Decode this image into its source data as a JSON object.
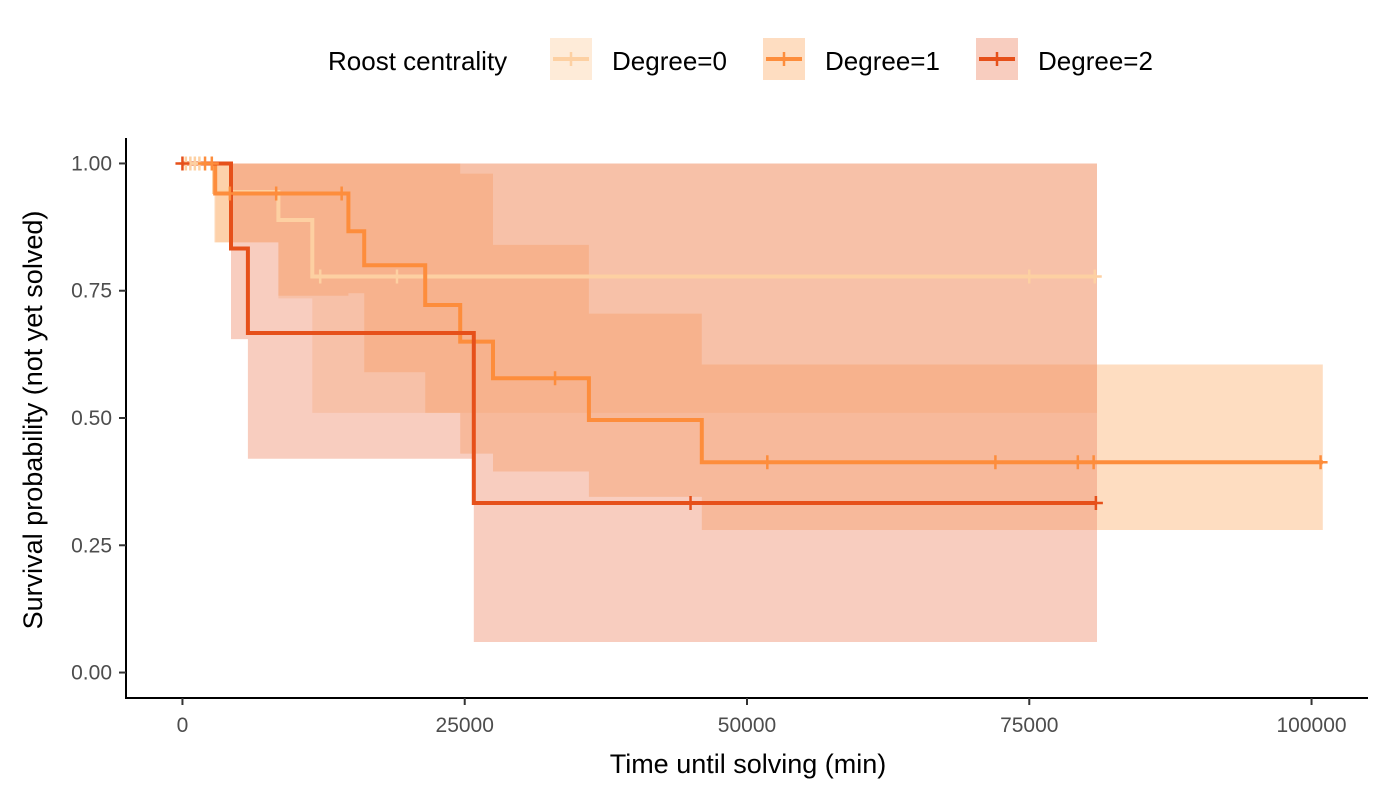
{
  "chart_data": {
    "type": "step",
    "title": "",
    "xlabel": "Time until solving (min)",
    "ylabel": "Survival probability (not yet solved)",
    "xlim": [
      -5000,
      105000
    ],
    "ylim": [
      -0.05,
      1.05
    ],
    "x_ticks": [
      0,
      25000,
      50000,
      75000,
      100000
    ],
    "x_tick_labels": [
      "0",
      "25000",
      "50000",
      "75000",
      "100000"
    ],
    "y_ticks": [
      0,
      0.25,
      0.5,
      0.75,
      1.0
    ],
    "y_tick_labels": [
      "0.00",
      "0.25",
      "0.50",
      "0.75",
      "1.00"
    ],
    "grid": false,
    "legend": {
      "title": "Roost centrality",
      "position": "top",
      "entries": [
        "Degree=0",
        "Degree=1",
        "Degree=2"
      ]
    },
    "series": [
      {
        "name": "Degree=0",
        "color": "#fdd0a2",
        "band_color": "#fdd0a2",
        "steps": [
          [
            0,
            1.0
          ],
          [
            2800,
            0.944
          ],
          [
            8500,
            0.889
          ],
          [
            11500,
            0.778
          ],
          [
            81000,
            0.778
          ]
        ],
        "lower": [
          [
            0,
            1.0
          ],
          [
            2800,
            0.845
          ],
          [
            8500,
            0.735
          ],
          [
            11500,
            0.51
          ],
          [
            81000,
            0.51
          ]
        ],
        "upper": [
          [
            0,
            1.0
          ],
          [
            81000,
            1.0
          ]
        ],
        "censored": [
          [
            300,
            1.0
          ],
          [
            700,
            1.0
          ],
          [
            1100,
            1.0
          ],
          [
            1500,
            1.0
          ],
          [
            12200,
            0.778
          ],
          [
            19000,
            0.778
          ],
          [
            75000,
            0.778
          ],
          [
            80800,
            0.778
          ]
        ]
      },
      {
        "name": "Degree=1",
        "color": "#fd8d3c",
        "band_color": "#fdae6b",
        "steps": [
          [
            0,
            1.0
          ],
          [
            2900,
            0.941
          ],
          [
            14700,
            0.867
          ],
          [
            16100,
            0.8
          ],
          [
            21500,
            0.722
          ],
          [
            24600,
            0.65
          ],
          [
            27500,
            0.578
          ],
          [
            36000,
            0.496
          ],
          [
            46000,
            0.413
          ],
          [
            101000,
            0.413
          ]
        ],
        "lower": [
          [
            0,
            1.0
          ],
          [
            2900,
            0.845
          ],
          [
            8500,
            0.74
          ],
          [
            14700,
            0.745
          ],
          [
            16100,
            0.59
          ],
          [
            21500,
            0.51
          ],
          [
            24600,
            0.43
          ],
          [
            27500,
            0.395
          ],
          [
            36000,
            0.345
          ],
          [
            46000,
            0.28
          ],
          [
            101000,
            0.28
          ]
        ],
        "upper": [
          [
            0,
            1.0
          ],
          [
            24600,
            0.98
          ],
          [
            27500,
            0.84
          ],
          [
            36000,
            0.705
          ],
          [
            46000,
            0.605
          ],
          [
            101000,
            0.605
          ]
        ],
        "censored": [
          [
            2000,
            1.0
          ],
          [
            2600,
            1.0
          ],
          [
            4200,
            0.941
          ],
          [
            8300,
            0.941
          ],
          [
            14100,
            0.941
          ],
          [
            33000,
            0.578
          ],
          [
            51800,
            0.413
          ],
          [
            72000,
            0.413
          ],
          [
            79300,
            0.413
          ],
          [
            80700,
            0.413
          ],
          [
            100800,
            0.413
          ]
        ]
      },
      {
        "name": "Degree=2",
        "color": "#e6501a",
        "band_color": "#ee8866",
        "steps": [
          [
            0,
            1.0
          ],
          [
            4300,
            0.833
          ],
          [
            5800,
            0.667
          ],
          [
            25800,
            0.333
          ],
          [
            81000,
            0.333
          ]
        ],
        "lower": [
          [
            0,
            1.0
          ],
          [
            4300,
            0.655
          ],
          [
            5800,
            0.42
          ],
          [
            25800,
            0.06
          ],
          [
            81000,
            0.06
          ]
        ],
        "upper": [
          [
            0,
            1.0
          ],
          [
            81000,
            1.0
          ]
        ],
        "censored": [
          [
            0,
            1.0
          ],
          [
            45000,
            0.333
          ],
          [
            80900,
            0.333
          ]
        ]
      }
    ]
  }
}
